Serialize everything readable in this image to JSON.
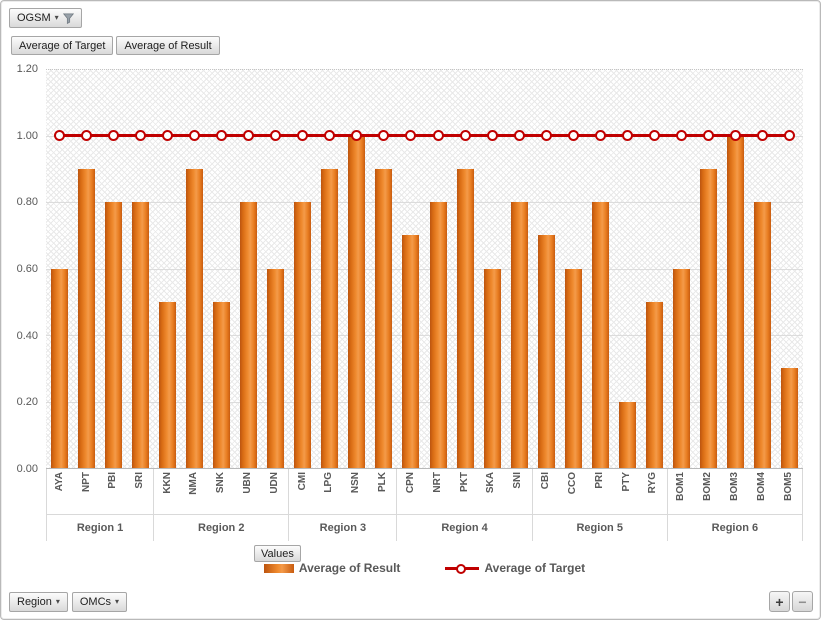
{
  "filter_button": {
    "label": "OGSM"
  },
  "data_field_buttons": [
    {
      "label": "Average of Target"
    },
    {
      "label": "Average of Result"
    }
  ],
  "axis_field_button": {
    "label": "Values"
  },
  "axis_filter_buttons": [
    {
      "label": "Region"
    },
    {
      "label": "OMCs"
    }
  ],
  "zoom_buttons": {
    "expand": "+",
    "collapse": "−"
  },
  "legend": {
    "position": "bottom",
    "items": [
      {
        "label": "Average of Result",
        "swatch": "bar",
        "color": "#e87f25"
      },
      {
        "label": "Average of Target",
        "swatch": "line-marker",
        "color": "#c00000"
      }
    ]
  },
  "colors": {
    "bar_orange": "#ed7d31",
    "bar_orange_dark": "#bc540f",
    "target_red": "#c00000",
    "gridline": "#dcdcdc",
    "axis_text": "#595959"
  },
  "chart_data": {
    "type": "bar",
    "title": "",
    "xlabel": "",
    "ylabel": "",
    "ylim": [
      0,
      1.2
    ],
    "yticks": [
      "0.00",
      "0.20",
      "0.40",
      "0.60",
      "0.80",
      "1.00",
      "1.20"
    ],
    "grid": true,
    "legend_position": "bottom",
    "groups": [
      {
        "label": "Region 1",
        "categories": [
          "AYA",
          "NPT",
          "PBI",
          "SRI"
        ]
      },
      {
        "label": "Region 2",
        "categories": [
          "KKN",
          "NMA",
          "SNK",
          "UBN",
          "UDN"
        ]
      },
      {
        "label": "Region 3",
        "categories": [
          "CMI",
          "LPG",
          "NSN",
          "PLK"
        ]
      },
      {
        "label": "Region 4",
        "categories": [
          "CPN",
          "NRT",
          "PKT",
          "SKA",
          "SNI"
        ]
      },
      {
        "label": "Region 5",
        "categories": [
          "CBI",
          "CCO",
          "PRI",
          "PTY",
          "RYG"
        ]
      },
      {
        "label": "Region 6",
        "categories": [
          "BOM1",
          "BOM2",
          "BOM3",
          "BOM4",
          "BOM5"
        ]
      }
    ],
    "series": [
      {
        "name": "Average of Result",
        "type": "bar",
        "color": "#ed7d31",
        "values": [
          0.6,
          0.9,
          0.8,
          0.8,
          0.5,
          0.9,
          0.5,
          0.8,
          0.6,
          0.8,
          0.9,
          1.0,
          0.9,
          0.7,
          0.8,
          0.9,
          0.6,
          0.8,
          0.7,
          0.6,
          0.8,
          0.2,
          0.5,
          0.6,
          0.9,
          1.0,
          0.8,
          0.3
        ]
      },
      {
        "name": "Average of Target",
        "type": "line",
        "color": "#c00000",
        "values": [
          1,
          1,
          1,
          1,
          1,
          1,
          1,
          1,
          1,
          1,
          1,
          1,
          1,
          1,
          1,
          1,
          1,
          1,
          1,
          1,
          1,
          1,
          1,
          1,
          1,
          1,
          1,
          1
        ]
      }
    ]
  }
}
